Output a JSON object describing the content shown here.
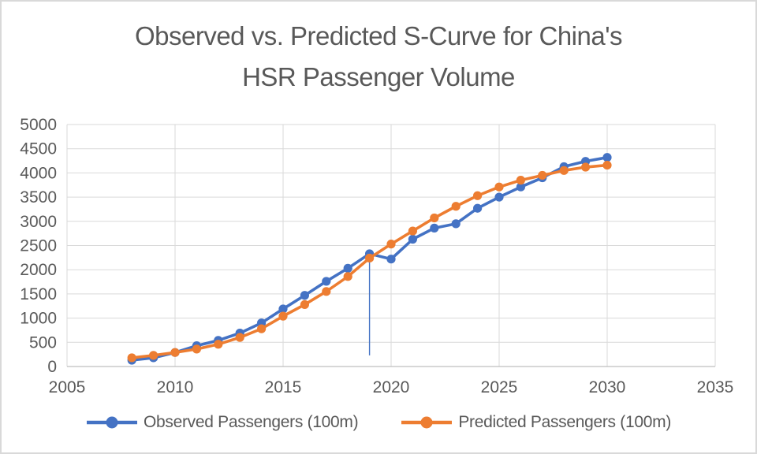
{
  "title_lines": [
    "Observed vs. Predicted S-Curve for China's",
    "HSR Passenger Volume"
  ],
  "colors": {
    "observed": "#4472C4",
    "predicted": "#ED7D31",
    "text": "#595959",
    "gridline": "#d9d9d9",
    "axis_line": "#bfbfbf",
    "background": "#ffffff"
  },
  "chart_data": {
    "type": "line",
    "title": "Observed vs. Predicted S-Curve for China's HSR Passenger Volume",
    "xlabel": "",
    "ylabel": "",
    "xlim": [
      2005,
      2035
    ],
    "ylim": [
      0,
      5000
    ],
    "x_ticks": [
      2005,
      2010,
      2015,
      2020,
      2025,
      2030,
      2035
    ],
    "y_ticks": [
      0,
      500,
      1000,
      1500,
      2000,
      2500,
      3000,
      3500,
      4000,
      4500,
      5000
    ],
    "grid": true,
    "legend_position": "bottom",
    "x": [
      2008,
      2009,
      2010,
      2011,
      2012,
      2013,
      2014,
      2015,
      2016,
      2017,
      2018,
      2019,
      2020,
      2021,
      2022,
      2023,
      2024,
      2025,
      2026,
      2027,
      2028,
      2029,
      2030
    ],
    "series": [
      {
        "name": "Observed Passengers (100m)",
        "color": "#4472C4",
        "marker": "circle",
        "values": [
          130,
          180,
          290,
          430,
          540,
          690,
          900,
          1190,
          1470,
          1760,
          2030,
          2330,
          2220,
          2630,
          2860,
          2950,
          3270,
          3500,
          3710,
          3900,
          4130,
          4240,
          4320
        ]
      },
      {
        "name": "Predicted Passengers (100m)",
        "color": "#ED7D31",
        "marker": "circle",
        "values": [
          180,
          230,
          290,
          360,
          460,
          600,
          780,
          1040,
          1280,
          1550,
          1860,
          2240,
          2530,
          2800,
          3070,
          3310,
          3530,
          3710,
          3850,
          3950,
          4050,
          4120,
          4160
        ]
      }
    ],
    "anomaly_line": {
      "x": 2019,
      "y_from": 2330,
      "y_to": 230,
      "color": "#4472C4",
      "note": "thin stray vertical line dropping from 2019 observed point"
    }
  }
}
